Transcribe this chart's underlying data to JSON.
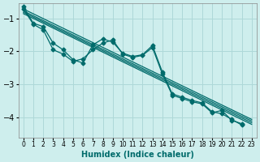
{
  "xlabel": "Humidex (Indice chaleur)",
  "bg_color": "#ceeeed",
  "grid_color": "#aed8d8",
  "line_color": "#006b6b",
  "xlim": [
    -0.5,
    23.5
  ],
  "ylim": [
    -4.6,
    -0.55
  ],
  "yticks": [
    -4,
    -3,
    -2,
    -1
  ],
  "xticks": [
    0,
    1,
    2,
    3,
    4,
    5,
    6,
    7,
    8,
    9,
    10,
    11,
    12,
    13,
    14,
    15,
    16,
    17,
    18,
    19,
    20,
    21,
    22,
    23
  ],
  "series_jagged": [
    [
      0,
      -0.65
    ],
    [
      1,
      -1.15
    ],
    [
      2,
      -1.25
    ],
    [
      3,
      -1.75
    ],
    [
      4,
      -1.95
    ],
    [
      5,
      -2.25
    ],
    [
      6,
      -2.35
    ],
    [
      7,
      -1.8
    ],
    [
      8,
      -1.62
    ],
    [
      9,
      -1.72
    ],
    [
      10,
      -2.05
    ],
    [
      11,
      -2.15
    ],
    [
      12,
      -2.1
    ],
    [
      13,
      -1.82
    ],
    [
      14,
      -2.62
    ],
    [
      15,
      -3.28
    ],
    [
      16,
      -3.38
    ],
    [
      17,
      -3.48
    ],
    [
      18,
      -3.55
    ],
    [
      19,
      -3.82
    ],
    [
      20,
      -3.88
    ],
    [
      21,
      -4.05
    ],
    [
      22,
      -4.22
    ]
  ],
  "series_jagged2": [
    [
      0,
      -0.72
    ],
    [
      1,
      -1.18
    ],
    [
      2,
      -1.35
    ],
    [
      3,
      -1.95
    ],
    [
      4,
      -2.08
    ],
    [
      5,
      -2.3
    ],
    [
      6,
      -2.22
    ],
    [
      7,
      -1.95
    ],
    [
      8,
      -1.75
    ],
    [
      9,
      -1.65
    ],
    [
      10,
      -2.08
    ],
    [
      11,
      -2.18
    ],
    [
      12,
      -2.12
    ],
    [
      13,
      -1.88
    ],
    [
      14,
      -2.68
    ],
    [
      15,
      -3.32
    ],
    [
      16,
      -3.42
    ],
    [
      17,
      -3.52
    ],
    [
      18,
      -3.58
    ],
    [
      19,
      -3.85
    ],
    [
      20,
      -3.78
    ],
    [
      21,
      -4.08
    ],
    [
      22,
      -4.18
    ]
  ],
  "regression_lines": [
    [
      [
        0,
        23
      ],
      [
        -0.72,
        -4.05
      ]
    ],
    [
      [
        0,
        23
      ],
      [
        -0.78,
        -4.1
      ]
    ],
    [
      [
        0,
        23
      ],
      [
        -0.82,
        -4.15
      ]
    ],
    [
      [
        0,
        23
      ],
      [
        -0.86,
        -4.2
      ]
    ]
  ]
}
